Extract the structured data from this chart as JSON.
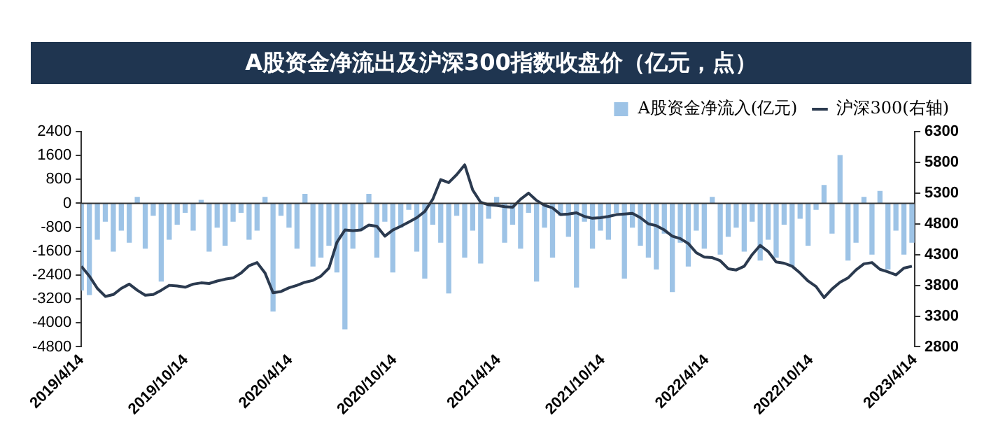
{
  "chart_data": {
    "type": "bar",
    "title": "A股资金净流出及沪深300指数收盘价（亿元，点）",
    "x": [
      "2019-04-14",
      "2019-04-28",
      "2019-05-12",
      "2019-05-26",
      "2019-06-09",
      "2019-06-23",
      "2019-07-07",
      "2019-07-21",
      "2019-08-04",
      "2019-08-18",
      "2019-09-01",
      "2019-09-15",
      "2019-09-29",
      "2019-10-13",
      "2019-10-27",
      "2019-11-10",
      "2019-11-24",
      "2019-12-08",
      "2019-12-22",
      "2020-01-05",
      "2020-01-19",
      "2020-02-02",
      "2020-02-16",
      "2020-03-01",
      "2020-03-15",
      "2020-03-29",
      "2020-04-12",
      "2020-04-26",
      "2020-05-10",
      "2020-05-24",
      "2020-06-07",
      "2020-06-21",
      "2020-07-05",
      "2020-07-19",
      "2020-08-02",
      "2020-08-16",
      "2020-08-30",
      "2020-09-13",
      "2020-09-27",
      "2020-10-11",
      "2020-10-25",
      "2020-11-08",
      "2020-11-22",
      "2020-12-06",
      "2020-12-20",
      "2021-01-03",
      "2021-01-17",
      "2021-01-31",
      "2021-02-14",
      "2021-02-28",
      "2021-03-14",
      "2021-03-28",
      "2021-04-11",
      "2021-04-25",
      "2021-05-09",
      "2021-05-23",
      "2021-06-06",
      "2021-06-20",
      "2021-07-04",
      "2021-07-18",
      "2021-08-01",
      "2021-08-15",
      "2021-08-29",
      "2021-09-12",
      "2021-09-26",
      "2021-10-10",
      "2021-10-24",
      "2021-11-07",
      "2021-11-21",
      "2021-12-05",
      "2021-12-19",
      "2022-01-02",
      "2022-01-16",
      "2022-01-30",
      "2022-02-13",
      "2022-02-27",
      "2022-03-13",
      "2022-03-27",
      "2022-04-10",
      "2022-04-24",
      "2022-05-08",
      "2022-05-22",
      "2022-06-05",
      "2022-06-19",
      "2022-07-03",
      "2022-07-17",
      "2022-07-31",
      "2022-08-14",
      "2022-08-28",
      "2022-09-11",
      "2022-09-25",
      "2022-10-09",
      "2022-10-23",
      "2022-11-06",
      "2022-11-20",
      "2022-12-04",
      "2022-12-18",
      "2023-01-01",
      "2023-01-15",
      "2023-01-29",
      "2023-02-12",
      "2023-02-26",
      "2023-03-12",
      "2023-03-26",
      "2023-04-09"
    ],
    "series": [
      {
        "name": "A股资金净流入(亿元)",
        "color": "#9dc3e6",
        "values": [
          -2900,
          -3050,
          -1200,
          -600,
          -1600,
          -900,
          -1300,
          200,
          -1500,
          -400,
          -2600,
          -1200,
          -700,
          -300,
          -900,
          100,
          -1600,
          -800,
          -1400,
          -600,
          -300,
          -1200,
          -900,
          200,
          -3600,
          -400,
          -800,
          -1500,
          300,
          -2100,
          -1800,
          -1400,
          -2300,
          -4200,
          -1500,
          -900,
          300,
          -1800,
          -600,
          -2300,
          -800,
          -200,
          -1600,
          -2500,
          -700,
          -1300,
          -3000,
          -400,
          -1800,
          -900,
          -2000,
          -500,
          200,
          -1300,
          -700,
          -1500,
          -300,
          -2600,
          -800,
          -1800,
          -400,
          -1100,
          -2800,
          -600,
          -1500,
          -900,
          -1200,
          -300,
          -2500,
          -800,
          -1400,
          -1800,
          -2200,
          -1000,
          -2950,
          -1300,
          -2100,
          -900,
          -1500,
          200,
          -1700,
          -1100,
          -800,
          -1600,
          -600,
          -1900,
          -1200,
          -1800,
          -700,
          -2100,
          -500,
          -1400,
          -200,
          600,
          -1000,
          1600,
          -1900,
          -1300,
          200,
          -1700,
          400,
          -2200,
          -900,
          -1700,
          -1300
        ]
      },
      {
        "name": "沪深300(右轴)",
        "type": "line",
        "axis": "y2",
        "color": "#2b3a4f",
        "values": [
          4110,
          3950,
          3750,
          3620,
          3650,
          3750,
          3820,
          3720,
          3640,
          3650,
          3720,
          3800,
          3790,
          3770,
          3820,
          3840,
          3830,
          3870,
          3900,
          3920,
          4000,
          4120,
          4170,
          4000,
          3680,
          3700,
          3760,
          3800,
          3850,
          3880,
          3950,
          4080,
          4500,
          4700,
          4690,
          4700,
          4780,
          4760,
          4600,
          4700,
          4760,
          4830,
          4900,
          5000,
          5200,
          5520,
          5470,
          5600,
          5760,
          5350,
          5150,
          5110,
          5100,
          5080,
          5070,
          5200,
          5300,
          5180,
          5100,
          5060,
          4950,
          4960,
          4980,
          4920,
          4890,
          4900,
          4920,
          4950,
          4960,
          4970,
          4900,
          4800,
          4770,
          4700,
          4600,
          4560,
          4480,
          4330,
          4260,
          4250,
          4200,
          4070,
          4050,
          4110,
          4300,
          4450,
          4350,
          4180,
          4160,
          4110,
          4000,
          3870,
          3780,
          3600,
          3740,
          3850,
          3920,
          4050,
          4150,
          4170,
          4060,
          4020,
          3970,
          4080,
          4110
        ]
      }
    ],
    "xlim": [
      "2019-04-14",
      "2023-04-14"
    ],
    "xticks": [
      {
        "value": "2019-04-14",
        "label": "2019/4/14"
      },
      {
        "value": "2019-10-14",
        "label": "2019/10/14"
      },
      {
        "value": "2020-04-14",
        "label": "2020/4/14"
      },
      {
        "value": "2020-10-14",
        "label": "2020/10/14"
      },
      {
        "value": "2021-04-14",
        "label": "2021/4/14"
      },
      {
        "value": "2021-10-14",
        "label": "2021/10/14"
      },
      {
        "value": "2022-04-14",
        "label": "2022/4/14"
      },
      {
        "value": "2022-10-14",
        "label": "2022/10/14"
      },
      {
        "value": "2023-04-14",
        "label": "2023/4/14"
      }
    ],
    "ylim": [
      -4800,
      2400
    ],
    "yticks": [
      -4800,
      -4000,
      -3200,
      -2400,
      -1600,
      -800,
      0,
      800,
      1600,
      2400
    ],
    "y2lim": [
      2800,
      6300
    ],
    "y2ticks": [
      2800,
      3300,
      3800,
      4300,
      4800,
      5300,
      5800,
      6300
    ],
    "ref_lines": [
      {
        "axis": "y",
        "value": 0,
        "color": "#333333"
      }
    ],
    "legend": "top",
    "grid": false,
    "line_style": "solid",
    "marker": "none"
  }
}
